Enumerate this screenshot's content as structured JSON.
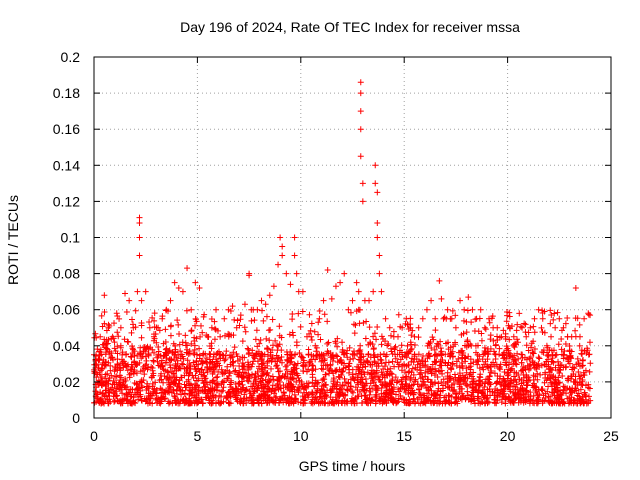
{
  "chart_data": {
    "type": "scatter",
    "title": "Day 196 of 2024, Rate Of TEC Index for receiver mssa",
    "xlabel": "GPS time / hours",
    "ylabel": "ROTI / TECUs",
    "xlim": [
      0,
      25
    ],
    "ylim": [
      0,
      0.2
    ],
    "x_ticks": [
      0,
      5,
      10,
      15,
      20,
      25
    ],
    "y_ticks": [
      0,
      0.02,
      0.04,
      0.06,
      0.08,
      0.1,
      0.12,
      0.14,
      0.16,
      0.18,
      0.2
    ],
    "x_tick_labels": [
      "0",
      "5",
      "10",
      "15",
      "20",
      "25"
    ],
    "y_tick_labels": [
      "0",
      "0.02",
      "0.04",
      "0.06",
      "0.08",
      "0.1",
      "0.12",
      "0.14",
      "0.16",
      "0.18",
      "0.2"
    ],
    "grid": true,
    "marker": "+",
    "series_color": "#ff0000",
    "x_range_data": [
      0,
      24
    ],
    "baseline_band": [
      0.008,
      0.035
    ],
    "series": [
      {
        "name": "ROTI",
        "x": [
          0.1,
          0.3,
          0.5,
          0.7,
          0.9,
          1.1,
          1.3,
          1.5,
          1.7,
          1.9,
          2.1,
          2.2,
          2.2,
          2.2,
          2.2,
          2.3,
          2.5,
          2.7,
          2.9,
          3.1,
          3.3,
          3.5,
          3.7,
          3.9,
          4.1,
          4.3,
          4.5,
          4.7,
          4.9,
          5.1,
          5.3,
          5.5,
          5.7,
          5.9,
          6.1,
          6.3,
          6.5,
          6.7,
          6.9,
          7.1,
          7.3,
          7.5,
          7.5,
          7.7,
          7.9,
          8.1,
          8.3,
          8.5,
          8.7,
          8.9,
          9.0,
          9.1,
          9.1,
          9.3,
          9.5,
          9.7,
          9.7,
          9.8,
          9.9,
          10.1,
          10.3,
          10.5,
          10.7,
          10.9,
          11.1,
          11.3,
          11.5,
          11.7,
          11.9,
          12.1,
          12.3,
          12.5,
          12.7,
          12.8,
          12.8,
          12.9,
          12.9,
          12.9,
          12.9,
          12.9,
          13.0,
          13.0,
          13.1,
          13.3,
          13.5,
          13.6,
          13.6,
          13.7,
          13.7,
          13.7,
          13.8,
          13.8,
          13.9,
          14.1,
          14.3,
          14.5,
          14.7,
          14.9,
          15.1,
          15.3,
          15.5,
          15.7,
          15.9,
          16.1,
          16.3,
          16.5,
          16.7,
          16.8,
          16.9,
          17.1,
          17.3,
          17.5,
          17.7,
          17.9,
          18.1,
          18.3,
          18.5,
          18.7,
          18.9,
          19.1,
          19.3,
          19.5,
          19.7,
          19.9,
          20.1,
          20.3,
          20.5,
          20.7,
          20.9,
          21.1,
          21.3,
          21.5,
          21.7,
          21.9,
          22.1,
          22.3,
          22.5,
          22.7,
          22.9,
          23.1,
          23.3,
          23.5,
          23.7,
          23.9
        ],
        "y": [
          0.035,
          0.045,
          0.068,
          0.05,
          0.045,
          0.058,
          0.05,
          0.069,
          0.065,
          0.05,
          0.07,
          0.111,
          0.108,
          0.1,
          0.09,
          0.065,
          0.07,
          0.05,
          0.045,
          0.05,
          0.055,
          0.06,
          0.065,
          0.075,
          0.072,
          0.07,
          0.083,
          0.06,
          0.075,
          0.072,
          0.056,
          0.045,
          0.05,
          0.06,
          0.045,
          0.055,
          0.06,
          0.062,
          0.05,
          0.057,
          0.063,
          0.08,
          0.079,
          0.06,
          0.06,
          0.065,
          0.063,
          0.068,
          0.073,
          0.085,
          0.1,
          0.095,
          0.09,
          0.08,
          0.074,
          0.1,
          0.09,
          0.08,
          0.07,
          0.07,
          0.045,
          0.045,
          0.04,
          0.055,
          0.065,
          0.082,
          0.066,
          0.073,
          0.075,
          0.08,
          0.06,
          0.065,
          0.075,
          0.07,
          0.06,
          0.186,
          0.18,
          0.17,
          0.16,
          0.145,
          0.13,
          0.12,
          0.065,
          0.065,
          0.07,
          0.14,
          0.13,
          0.125,
          0.108,
          0.1,
          0.09,
          0.08,
          0.07,
          0.055,
          0.05,
          0.045,
          0.045,
          0.05,
          0.055,
          0.05,
          0.045,
          0.05,
          0.055,
          0.06,
          0.065,
          0.055,
          0.076,
          0.066,
          0.055,
          0.06,
          0.055,
          0.05,
          0.065,
          0.06,
          0.067,
          0.06,
          0.055,
          0.06,
          0.05,
          0.055,
          0.05,
          0.05,
          0.045,
          0.045,
          0.05,
          0.045,
          0.042,
          0.05,
          0.045,
          0.05,
          0.055,
          0.06,
          0.055,
          0.04,
          0.045,
          0.05,
          0.055,
          0.05,
          0.045,
          0.045,
          0.072,
          0.045,
          0.055,
          0.058
        ]
      }
    ]
  }
}
